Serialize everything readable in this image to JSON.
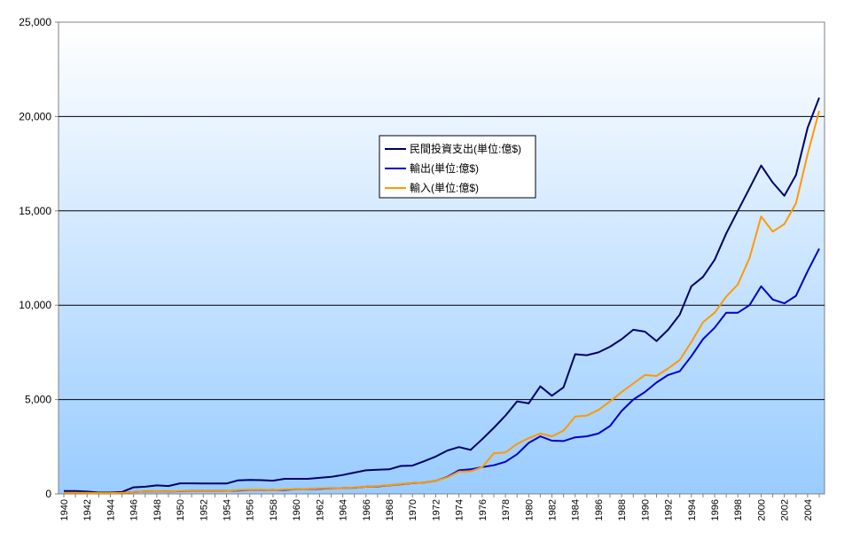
{
  "chart_data": {
    "type": "line",
    "y_axis": {
      "range": [
        0,
        25000
      ],
      "ticks": [
        0,
        5000,
        10000,
        15000,
        20000,
        25000
      ],
      "tick_labels": [
        "0",
        "5,000",
        "10,000",
        "15,000",
        "20,000",
        "25,000"
      ]
    },
    "x_axis": {
      "range": [
        1940,
        2005
      ],
      "ticks": [
        1940,
        1942,
        1944,
        1946,
        1948,
        1950,
        1952,
        1954,
        1956,
        1958,
        1960,
        1962,
        1964,
        1966,
        1968,
        1970,
        1972,
        1974,
        1976,
        1978,
        1980,
        1982,
        1984,
        1986,
        1988,
        1990,
        1992,
        1994,
        1996,
        1998,
        2000,
        2002,
        2004
      ],
      "tick_labels": [
        "1940",
        "1942",
        "1944",
        "1946",
        "1948",
        "1950",
        "1952",
        "1954",
        "1956",
        "1958",
        "1960",
        "1962",
        "1964",
        "1966",
        "1968",
        "1970",
        "1972",
        "1974",
        "1976",
        "1978",
        "1980",
        "1982",
        "1984",
        "1986",
        "1988",
        "1990",
        "1992",
        "1994",
        "1996",
        "1998",
        "2000",
        "2002",
        "2004"
      ],
      "label_orientation": "vertical"
    },
    "grid": "horizontal",
    "background": "gradient white to light blue",
    "legend": {
      "placement": "center"
    },
    "x": [
      1940,
      1941,
      1942,
      1943,
      1944,
      1945,
      1946,
      1947,
      1948,
      1949,
      1950,
      1951,
      1952,
      1953,
      1954,
      1955,
      1956,
      1957,
      1958,
      1959,
      1960,
      1961,
      1962,
      1963,
      1964,
      1965,
      1966,
      1967,
      1968,
      1969,
      1970,
      1971,
      1972,
      1973,
      1974,
      1975,
      1976,
      1977,
      1978,
      1979,
      1980,
      1981,
      1982,
      1983,
      1984,
      1985,
      1986,
      1987,
      1988,
      1989,
      1990,
      1991,
      1992,
      1993,
      1994,
      1995,
      1996,
      1997,
      1998,
      1999,
      2000,
      2001,
      2002,
      2003,
      2004,
      2005
    ],
    "series": [
      {
        "name": "民間投資支出(単位:億$)",
        "color": "#000066",
        "values": [
          150,
          150,
          120,
          70,
          70,
          100,
          350,
          380,
          450,
          420,
          560,
          560,
          550,
          550,
          550,
          720,
          740,
          730,
          700,
          800,
          800,
          800,
          850,
          900,
          1000,
          1130,
          1250,
          1280,
          1300,
          1480,
          1500,
          1730,
          1980,
          2300,
          2480,
          2330,
          2900,
          3500,
          4150,
          4900,
          4800,
          5700,
          5200,
          5650,
          7400,
          7350,
          7500,
          7800,
          8200,
          8700,
          8600,
          8100,
          8700,
          9500,
          11000,
          11500,
          12400,
          13800,
          15000,
          16200,
          17400,
          16500,
          15800,
          16900,
          19400,
          21000
        ]
      },
      {
        "name": "輸出(単位:億$)",
        "color": "#0000cc",
        "values": [
          60,
          60,
          50,
          40,
          40,
          50,
          100,
          130,
          140,
          130,
          140,
          150,
          160,
          150,
          160,
          180,
          210,
          210,
          200,
          210,
          250,
          260,
          270,
          290,
          310,
          330,
          380,
          400,
          450,
          510,
          570,
          600,
          690,
          900,
          1250,
          1300,
          1420,
          1520,
          1700,
          2100,
          2700,
          3050,
          2820,
          2800,
          3000,
          3050,
          3200,
          3600,
          4400,
          5000,
          5400,
          5900,
          6300,
          6500,
          7300,
          8200,
          8800,
          9600,
          9600,
          10000,
          11000,
          10300,
          10100,
          10500,
          11800,
          13000
        ]
      },
      {
        "name": "輸入(単位:億$)",
        "color": "#ff9900",
        "values": [
          60,
          60,
          50,
          40,
          40,
          50,
          100,
          130,
          140,
          130,
          150,
          150,
          160,
          150,
          160,
          200,
          220,
          230,
          200,
          240,
          250,
          270,
          290,
          300,
          310,
          340,
          380,
          420,
          460,
          520,
          580,
          600,
          690,
          880,
          1180,
          1200,
          1420,
          2150,
          2200,
          2650,
          2950,
          3200,
          3050,
          3350,
          4100,
          4150,
          4450,
          4900,
          5400,
          5850,
          6300,
          6250,
          6650,
          7100,
          8050,
          9100,
          9600,
          10450,
          11100,
          12500,
          14700,
          13900,
          14300,
          15400,
          18000,
          20300
        ]
      }
    ]
  }
}
